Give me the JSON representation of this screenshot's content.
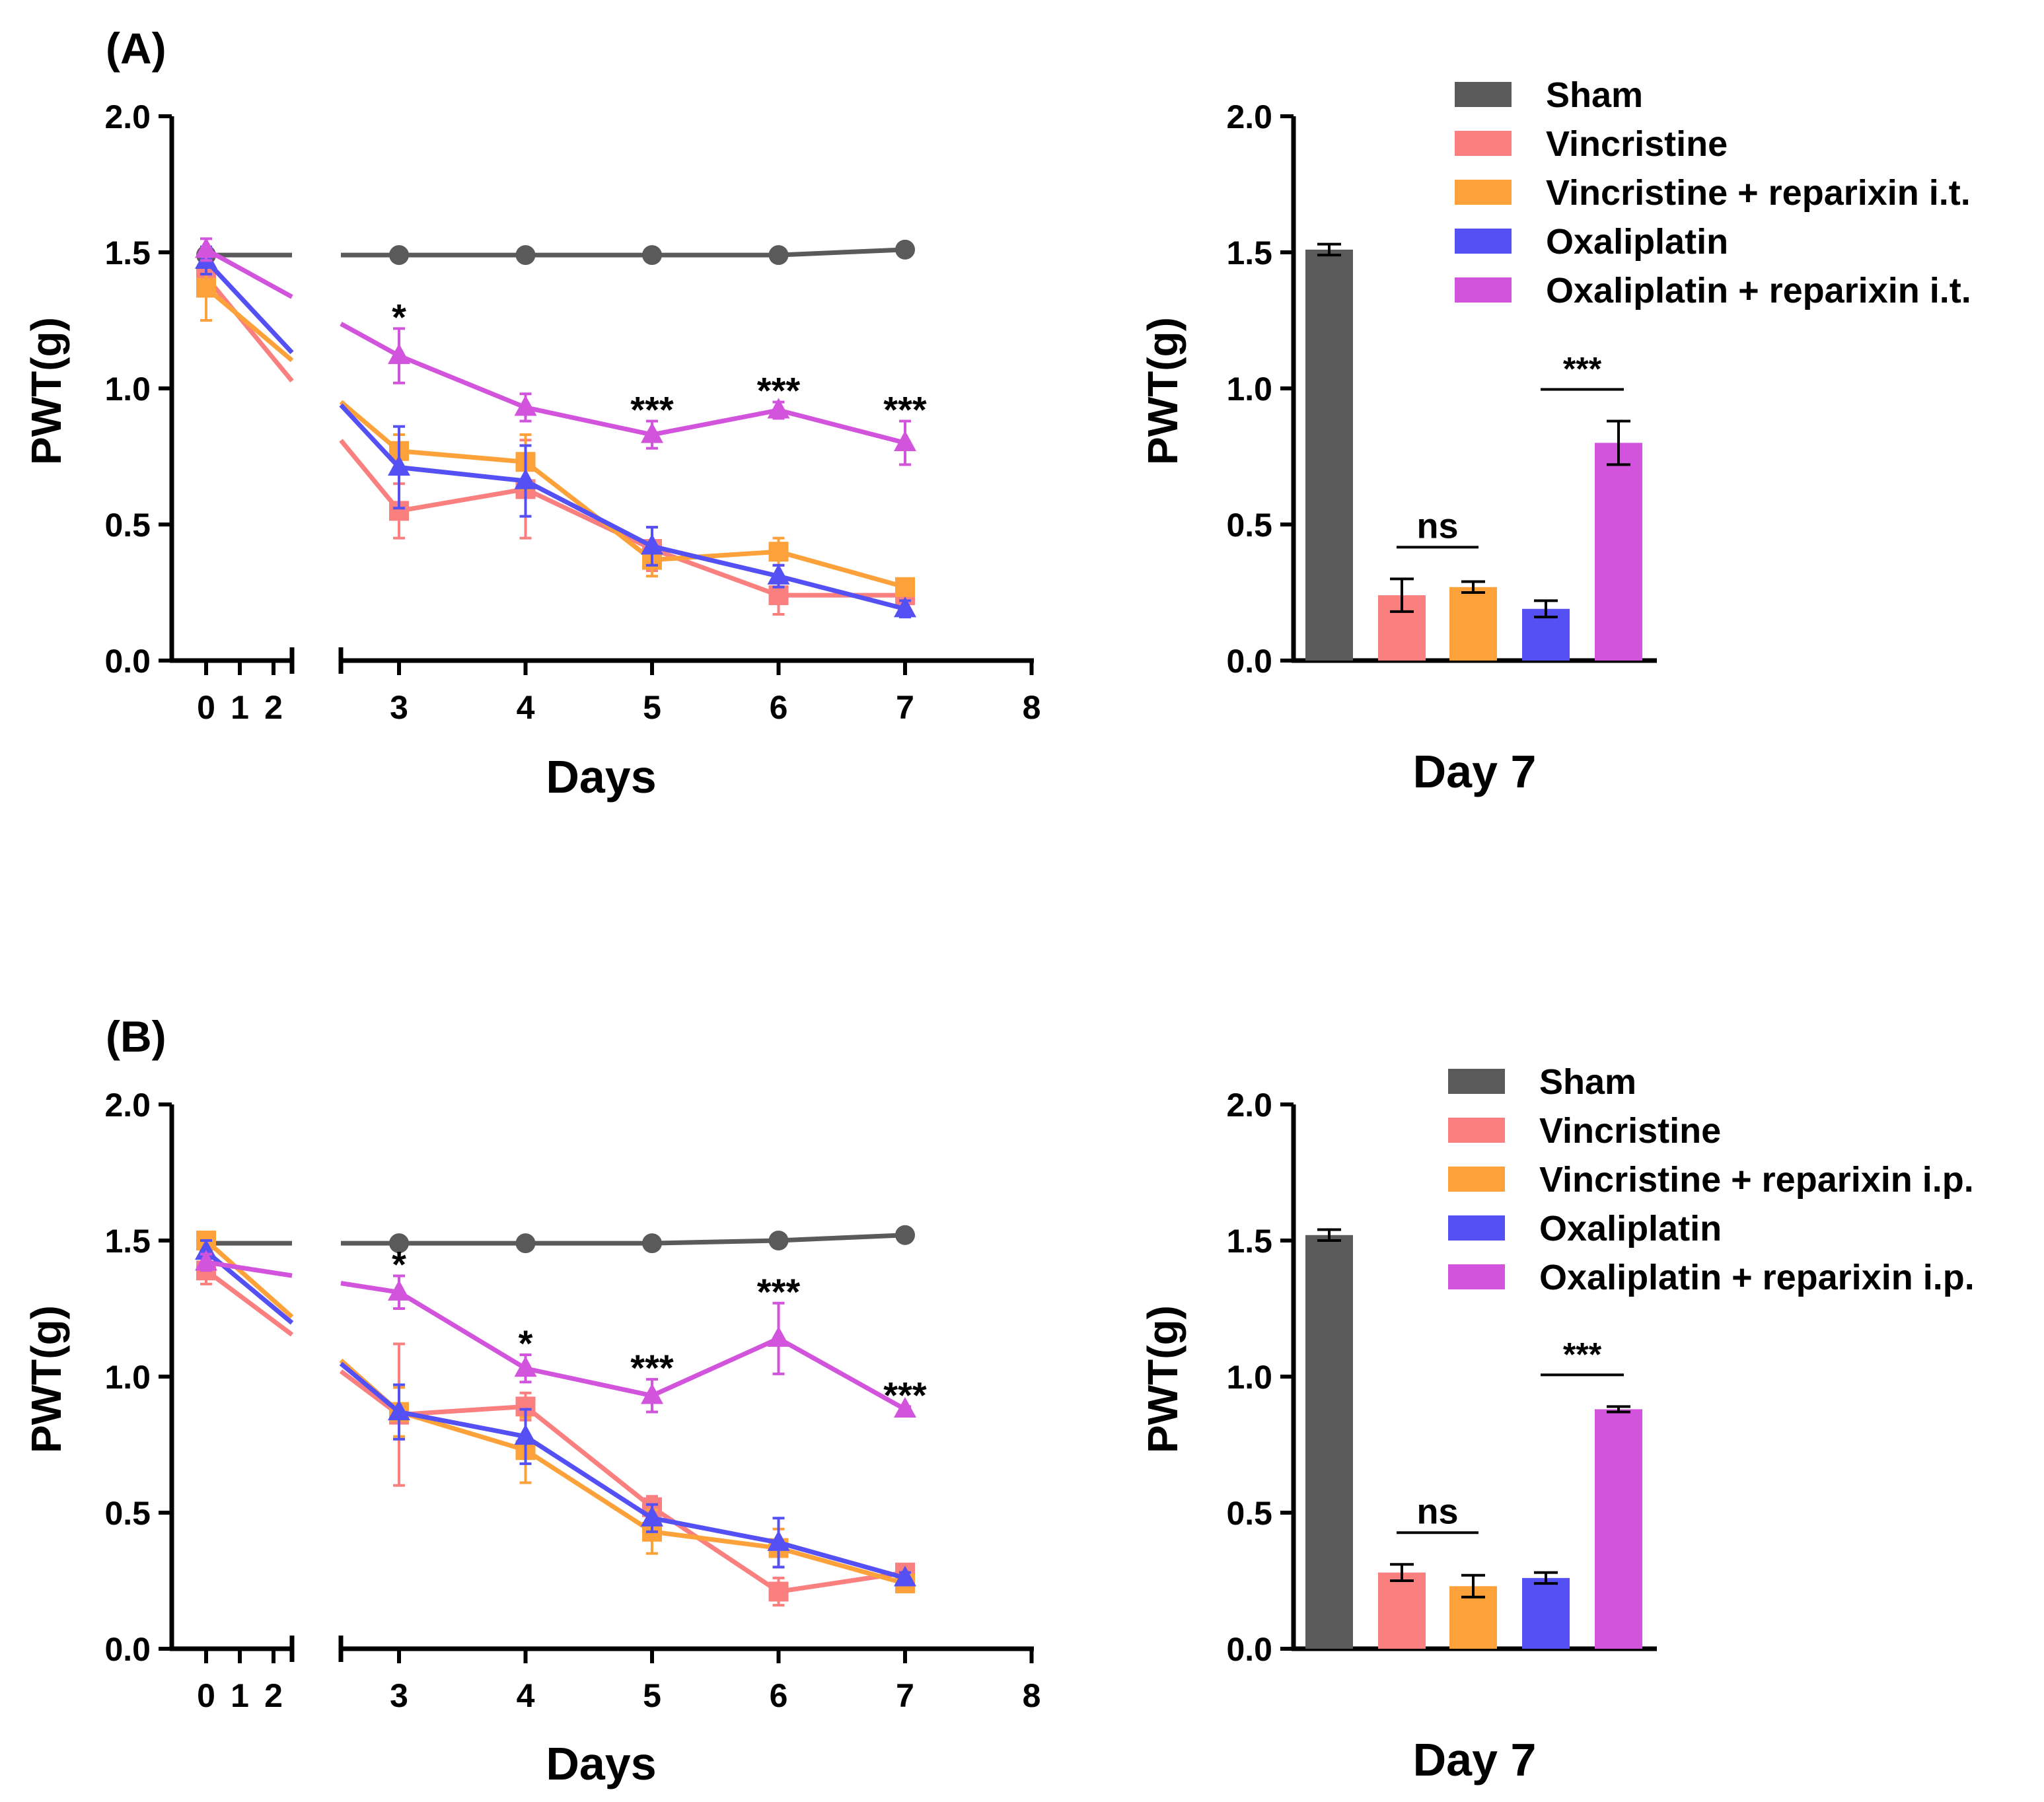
{
  "panels": [
    {
      "label": "(A)",
      "legend": [
        "Sham",
        "Vincristine",
        "Vincristine + reparixin i.t.",
        "Oxaliplatin",
        "Oxaliplatin + reparixin i.t."
      ]
    },
    {
      "label": "(B)",
      "legend": [
        "Sham",
        "Vincristine",
        "Vincristine + reparixin i.p.",
        "Oxaliplatin",
        "Oxaliplatin + reparixin i.p."
      ]
    }
  ],
  "colors": {
    "Sham": "#5a5a5a",
    "Vincristine": "#fa7f7f",
    "Vincristine + reparixin": "#fda23a",
    "Oxaliplatin": "#5450f4",
    "Oxaliplatin + reparixin": "#d254dc"
  },
  "chart_data": [
    {
      "type": "line",
      "panel": "A",
      "title": "",
      "xlabel": "Days",
      "ylabel": "PWT(g)",
      "ylim": [
        0,
        2.0
      ],
      "yticks": [
        "0.0",
        "0.5",
        "1.0",
        "1.5",
        "2.0"
      ],
      "xticks": [
        "0",
        "1",
        "2",
        "3",
        "4",
        "5",
        "6",
        "7",
        "8"
      ],
      "x": [
        0,
        3,
        4,
        5,
        6,
        7
      ],
      "series": [
        {
          "name": "Sham",
          "values": [
            1.49,
            1.49,
            1.49,
            1.49,
            1.49,
            1.51
          ],
          "errors": [
            0.02,
            0.01,
            0.01,
            0.01,
            0.01,
            0.01
          ],
          "marker": "circle"
        },
        {
          "name": "Vincristine",
          "values": [
            1.41,
            0.55,
            0.63,
            0.41,
            0.24,
            0.24
          ],
          "errors": [
            0.05,
            0.1,
            0.18,
            0.08,
            0.07,
            0.05
          ],
          "marker": "square"
        },
        {
          "name": "Vincristine + reparixin i.t.",
          "values": [
            1.37,
            0.77,
            0.73,
            0.37,
            0.4,
            0.27
          ],
          "errors": [
            0.12,
            0.06,
            0.1,
            0.06,
            0.05,
            0.02
          ],
          "marker": "square"
        },
        {
          "name": "Oxaliplatin",
          "values": [
            1.47,
            0.71,
            0.66,
            0.42,
            0.31,
            0.19
          ],
          "errors": [
            0.05,
            0.15,
            0.13,
            0.07,
            0.04,
            0.03
          ],
          "marker": "triangle"
        },
        {
          "name": "Oxaliplatin + reparixin i.t.",
          "values": [
            1.51,
            1.12,
            0.93,
            0.83,
            0.92,
            0.8
          ],
          "errors": [
            0.04,
            0.1,
            0.05,
            0.05,
            0.03,
            0.08
          ],
          "marker": "triangle"
        }
      ],
      "annotations": [
        {
          "x": 3,
          "text": "*"
        },
        {
          "x": 5,
          "text": "***"
        },
        {
          "x": 6,
          "text": "***"
        },
        {
          "x": 7,
          "text": "***"
        }
      ]
    },
    {
      "type": "bar",
      "panel": "A",
      "title": "",
      "xlabel": "Day 7",
      "ylabel": "PWT(g)",
      "ylim": [
        0,
        2.0
      ],
      "yticks": [
        "0.0",
        "0.5",
        "1.0",
        "1.5",
        "2.0"
      ],
      "categories": [
        "Sham",
        "Vincristine",
        "Vincristine + reparixin i.t.",
        "Oxaliplatin",
        "Oxaliplatin + reparixin i.t."
      ],
      "values": [
        1.51,
        0.24,
        0.27,
        0.19,
        0.8
      ],
      "errors": [
        0.02,
        0.06,
        0.02,
        0.03,
        0.08
      ],
      "brackets": [
        {
          "from": 1,
          "to": 2,
          "text": "ns"
        },
        {
          "from": 3,
          "to": 4,
          "text": "***"
        }
      ]
    },
    {
      "type": "line",
      "panel": "B",
      "title": "",
      "xlabel": "Days",
      "ylabel": "PWT(g)",
      "ylim": [
        0,
        2.0
      ],
      "yticks": [
        "0.0",
        "0.5",
        "1.0",
        "1.5",
        "2.0"
      ],
      "xticks": [
        "0",
        "1",
        "2",
        "3",
        "4",
        "5",
        "6",
        "7",
        "8"
      ],
      "x": [
        0,
        3,
        4,
        5,
        6,
        7
      ],
      "series": [
        {
          "name": "Sham",
          "values": [
            1.49,
            1.49,
            1.49,
            1.49,
            1.5,
            1.52
          ],
          "errors": [
            0.01,
            0.01,
            0.01,
            0.01,
            0.01,
            0.01
          ],
          "marker": "circle"
        },
        {
          "name": "Vincristine",
          "values": [
            1.39,
            0.86,
            0.89,
            0.52,
            0.21,
            0.28
          ],
          "errors": [
            0.05,
            0.26,
            0.05,
            0.04,
            0.05,
            0.03
          ],
          "marker": "square"
        },
        {
          "name": "Vincristine + reparixin i.p.",
          "values": [
            1.5,
            0.87,
            0.73,
            0.43,
            0.37,
            0.24
          ],
          "errors": [
            0.02,
            0.09,
            0.12,
            0.08,
            0.07,
            0.03
          ],
          "marker": "square"
        },
        {
          "name": "Oxaliplatin",
          "values": [
            1.46,
            0.87,
            0.78,
            0.48,
            0.39,
            0.26
          ],
          "errors": [
            0.04,
            0.1,
            0.1,
            0.05,
            0.09,
            0.02
          ],
          "marker": "triangle"
        },
        {
          "name": "Oxaliplatin + reparixin i.p.",
          "values": [
            1.42,
            1.31,
            1.03,
            0.93,
            1.14,
            0.88
          ],
          "errors": [
            0.03,
            0.06,
            0.05,
            0.06,
            0.13,
            0.01
          ],
          "marker": "triangle"
        }
      ],
      "annotations": [
        {
          "x": 3,
          "text": "*"
        },
        {
          "x": 4,
          "text": "*"
        },
        {
          "x": 5,
          "text": "***"
        },
        {
          "x": 6,
          "text": "***"
        },
        {
          "x": 7,
          "text": "***"
        }
      ]
    },
    {
      "type": "bar",
      "panel": "B",
      "title": "",
      "xlabel": "Day 7",
      "ylabel": "PWT(g)",
      "ylim": [
        0,
        2.0
      ],
      "yticks": [
        "0.0",
        "0.5",
        "1.0",
        "1.5",
        "2.0"
      ],
      "categories": [
        "Sham",
        "Vincristine",
        "Vincristine + reparixin i.p.",
        "Oxaliplatin",
        "Oxaliplatin + reparixin i.p."
      ],
      "values": [
        1.52,
        0.28,
        0.23,
        0.26,
        0.88
      ],
      "errors": [
        0.02,
        0.03,
        0.04,
        0.02,
        0.01
      ],
      "brackets": [
        {
          "from": 1,
          "to": 2,
          "text": "ns"
        },
        {
          "from": 3,
          "to": 4,
          "text": "***"
        }
      ]
    }
  ]
}
